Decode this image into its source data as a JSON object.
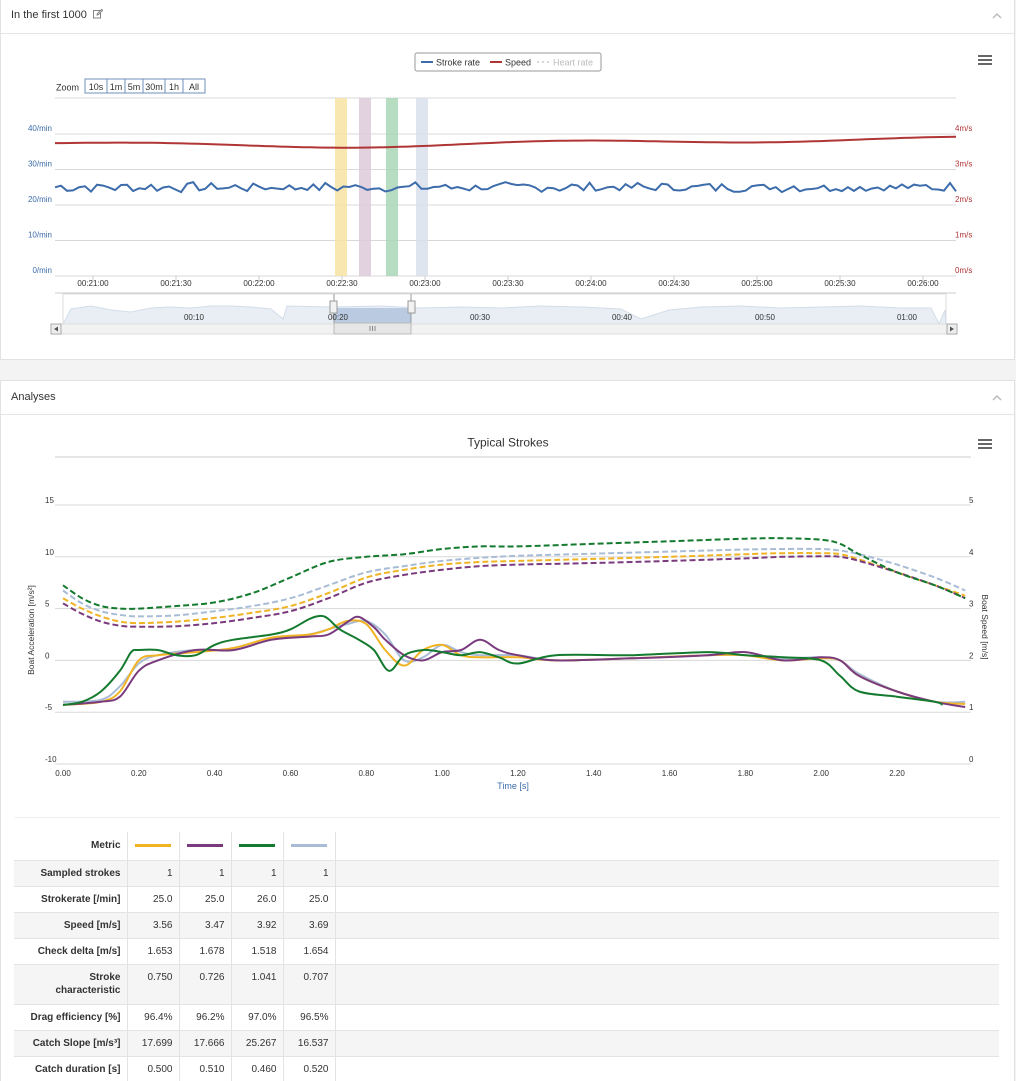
{
  "panel1": {
    "title": "In the first 1000"
  },
  "timeline_chart": {
    "legend": [
      {
        "label": "Stroke rate",
        "color": "#3d6cab",
        "dashed": false,
        "muted": false
      },
      {
        "label": "Speed",
        "color": "#b03535",
        "dashed": false,
        "muted": false
      },
      {
        "label": "Heart rate",
        "color": "#c9c9c9",
        "dashed": true,
        "muted": true
      }
    ],
    "zoom_label": "Zoom",
    "zoom_buttons": [
      "10s",
      "1m",
      "5m",
      "30m",
      "1h",
      "All"
    ],
    "left_axis_ticks": [
      "40/min",
      "30/min",
      "20/min",
      "10/min",
      "0/min"
    ],
    "right_axis_ticks": [
      "4m/s",
      "3m/s",
      "2m/s",
      "1m/s",
      "0m/s"
    ],
    "x_ticks": [
      "00:21:00",
      "00:21:30",
      "00:22:00",
      "00:22:30",
      "00:23:00",
      "00:23:30",
      "00:24:00",
      "00:24:30",
      "00:25:00",
      "00:25:30",
      "00:26:00"
    ],
    "navigator_ticks": [
      "00:10",
      "00:20",
      "00:30",
      "00:40",
      "00:50",
      "01:00"
    ],
    "highlight_bands": [
      {
        "color": "#f7e3a3"
      },
      {
        "color": "#ddc9d9"
      },
      {
        "color": "#a9d6b6"
      },
      {
        "color": "#d8e1ec"
      }
    ],
    "stroke_rate_approx": 25,
    "speed_approx": 3.8
  },
  "panel2": {
    "title": "Analyses"
  },
  "typical_strokes_chart": {
    "title": "Typical Strokes",
    "left_ticks": [
      "15",
      "10",
      "5",
      "0",
      "-5",
      "-10"
    ],
    "right_ticks": [
      "5",
      "4",
      "3",
      "2",
      "1",
      "0"
    ],
    "x_ticks": [
      "0.00",
      "0.20",
      "0.40",
      "0.60",
      "0.80",
      "1.00",
      "1.20",
      "1.40",
      "1.60",
      "1.80",
      "2.00",
      "2.20"
    ],
    "xlabel": "Time [s]",
    "ylabel_left": "Boat Acceleration [m/s²]",
    "ylabel_right": "Boat Speed [m/s]"
  },
  "chart_data": {
    "type": "line",
    "title": "Typical Strokes",
    "xlabel": "Time [s]",
    "ylabel": "Boat Acceleration [m/s²]",
    "ylabel_right": "Boat Speed [m/s]",
    "xlim": [
      0,
      2.4
    ],
    "ylim": [
      -10,
      15
    ],
    "ylim_right": [
      0,
      5
    ],
    "series": [
      {
        "color": "#f0b323",
        "axis": "left",
        "x": [
          0,
          0.1,
          0.15,
          0.2,
          0.25,
          0.35,
          0.45,
          0.55,
          0.65,
          0.7,
          0.75,
          0.8,
          0.85,
          0.9,
          0.95,
          1.0,
          1.05,
          1.1,
          1.2,
          1.3,
          1.5,
          1.7,
          1.8,
          1.9,
          2.0,
          2.05,
          2.1,
          2.2,
          2.3,
          2.38
        ],
        "y": [
          -4.3,
          -4.0,
          -3.0,
          0.0,
          0.5,
          0.8,
          1.2,
          2.2,
          2.5,
          3.0,
          3.8,
          3.5,
          1.0,
          -0.5,
          1.0,
          1.5,
          0.5,
          0.3,
          0.3,
          0.0,
          0.2,
          0.5,
          0.5,
          0.0,
          0.2,
          0.0,
          -1.5,
          -3.0,
          -4.0,
          -4.2
        ]
      },
      {
        "color": "#7a3b7e",
        "axis": "left",
        "x": [
          0,
          0.1,
          0.15,
          0.2,
          0.25,
          0.35,
          0.45,
          0.55,
          0.65,
          0.7,
          0.75,
          0.78,
          0.82,
          0.85,
          0.9,
          0.95,
          1.0,
          1.05,
          1.1,
          1.15,
          1.2,
          1.3,
          1.5,
          1.7,
          1.8,
          1.9,
          2.0,
          2.05,
          2.1,
          2.2,
          2.3,
          2.38
        ],
        "y": [
          -4.3,
          -4.0,
          -3.5,
          -1.0,
          0.0,
          1.0,
          1.0,
          2.0,
          2.3,
          2.5,
          3.7,
          4.2,
          3.2,
          2.0,
          0.5,
          0.0,
          0.8,
          1.0,
          2.0,
          1.0,
          0.5,
          0.0,
          0.2,
          0.5,
          0.8,
          0.0,
          0.3,
          0.0,
          -1.5,
          -3.0,
          -4.0,
          -4.5
        ]
      },
      {
        "color": "#137a2e",
        "axis": "left",
        "x": [
          0,
          0.05,
          0.1,
          0.15,
          0.18,
          0.2,
          0.25,
          0.3,
          0.35,
          0.4,
          0.45,
          0.55,
          0.6,
          0.65,
          0.68,
          0.7,
          0.73,
          0.78,
          0.82,
          0.86,
          0.9,
          0.95,
          1.0,
          1.05,
          1.1,
          1.15,
          1.2,
          1.3,
          1.5,
          1.7,
          1.8,
          1.9,
          2.0,
          2.05,
          2.1,
          2.2,
          2.3,
          2.32
        ],
        "y": [
          -4.3,
          -4.0,
          -3.0,
          -1.0,
          0.8,
          1.0,
          1.0,
          0.5,
          0.5,
          1.5,
          2.0,
          2.5,
          3.0,
          4.0,
          4.3,
          4.0,
          3.0,
          2.0,
          1.0,
          -1.0,
          0.5,
          1.0,
          0.8,
          0.5,
          0.8,
          0.3,
          -0.3,
          0.5,
          0.5,
          0.8,
          0.5,
          0.3,
          0.0,
          -1.5,
          -3.0,
          -3.5,
          -4.0,
          -4.3
        ]
      },
      {
        "color": "#a9bcd6",
        "axis": "left",
        "x": [
          0,
          0.1,
          0.15,
          0.2,
          0.25,
          0.35,
          0.45,
          0.55,
          0.65,
          0.7,
          0.75,
          0.8,
          0.85,
          0.9,
          0.95,
          1.0,
          1.05,
          1.1,
          1.2,
          1.3,
          1.5,
          1.7,
          1.8,
          1.9,
          2.0,
          2.05,
          2.1,
          2.2,
          2.3,
          2.38
        ],
        "y": [
          -4.0,
          -3.8,
          -2.5,
          -0.3,
          0.5,
          1.0,
          1.0,
          2.0,
          2.5,
          3.0,
          3.5,
          3.8,
          2.5,
          0.0,
          0.3,
          1.5,
          0.8,
          0.5,
          0.5,
          0.0,
          0.2,
          0.5,
          0.5,
          0.2,
          0.3,
          0.0,
          -1.3,
          -3.0,
          -4.0,
          -4.0
        ]
      },
      {
        "color": "#f0b323",
        "axis": "right",
        "dashed": true,
        "x": [
          0,
          0.05,
          0.1,
          0.15,
          0.2,
          0.3,
          0.4,
          0.5,
          0.6,
          0.7,
          0.8,
          0.9,
          1.0,
          1.1,
          1.2,
          1.4,
          1.6,
          1.8,
          1.9,
          2.0,
          2.05,
          2.1,
          2.2,
          2.3,
          2.38
        ],
        "y": [
          3.2,
          3.0,
          2.85,
          2.75,
          2.72,
          2.75,
          2.82,
          2.92,
          3.05,
          3.3,
          3.6,
          3.75,
          3.85,
          3.9,
          3.92,
          3.96,
          4.0,
          4.05,
          4.07,
          4.07,
          4.05,
          3.95,
          3.7,
          3.45,
          3.25
        ]
      },
      {
        "color": "#7a3b7e",
        "axis": "right",
        "dashed": true,
        "x": [
          0,
          0.05,
          0.1,
          0.15,
          0.2,
          0.3,
          0.4,
          0.5,
          0.6,
          0.7,
          0.8,
          0.9,
          1.0,
          1.1,
          1.2,
          1.4,
          1.6,
          1.8,
          1.9,
          2.0,
          2.05,
          2.1,
          2.2,
          2.3,
          2.38
        ],
        "y": [
          3.1,
          2.9,
          2.75,
          2.67,
          2.65,
          2.66,
          2.72,
          2.82,
          2.95,
          3.2,
          3.5,
          3.65,
          3.75,
          3.82,
          3.85,
          3.88,
          3.92,
          3.97,
          4.0,
          4.01,
          4.0,
          3.92,
          3.7,
          3.45,
          3.2
        ]
      },
      {
        "color": "#137a2e",
        "axis": "right",
        "dashed": true,
        "x": [
          0,
          0.05,
          0.1,
          0.15,
          0.2,
          0.3,
          0.4,
          0.5,
          0.6,
          0.7,
          0.8,
          0.9,
          1.0,
          1.1,
          1.2,
          1.4,
          1.6,
          1.8,
          1.9,
          2.0,
          2.05,
          2.1,
          2.2,
          2.3,
          2.38
        ],
        "y": [
          3.45,
          3.2,
          3.05,
          3.0,
          3.0,
          3.05,
          3.12,
          3.3,
          3.6,
          3.9,
          4.0,
          4.05,
          4.15,
          4.2,
          4.2,
          4.25,
          4.3,
          4.35,
          4.36,
          4.33,
          4.25,
          4.05,
          3.7,
          3.45,
          3.2
        ]
      },
      {
        "color": "#a9bcd6",
        "axis": "right",
        "dashed": true,
        "x": [
          0,
          0.05,
          0.1,
          0.15,
          0.2,
          0.3,
          0.4,
          0.5,
          0.6,
          0.7,
          0.8,
          0.9,
          1.0,
          1.1,
          1.2,
          1.4,
          1.6,
          1.8,
          1.9,
          2.0,
          2.05,
          2.1,
          2.2,
          2.3,
          2.38
        ],
        "y": [
          3.35,
          3.1,
          2.95,
          2.88,
          2.85,
          2.87,
          2.95,
          3.05,
          3.2,
          3.45,
          3.7,
          3.82,
          3.92,
          3.98,
          4.02,
          4.06,
          4.1,
          4.14,
          4.15,
          4.15,
          4.12,
          4.05,
          3.85,
          3.6,
          3.35
        ]
      }
    ]
  },
  "metrics_table": {
    "header_label": "Metric",
    "series_colors": [
      "#f0b323",
      "#7a3b7e",
      "#137a2e",
      "#a9bcd6"
    ],
    "rows": [
      {
        "label": "Sampled strokes",
        "values": [
          "1",
          "1",
          "1",
          "1"
        ],
        "tall": false
      },
      {
        "label": "Strokerate [/min]",
        "values": [
          "25.0",
          "25.0",
          "26.0",
          "25.0"
        ],
        "tall": false
      },
      {
        "label": "Speed [m/s]",
        "values": [
          "3.56",
          "3.47",
          "3.92",
          "3.69"
        ],
        "tall": false
      },
      {
        "label": "Check delta [m/s]",
        "values": [
          "1.653",
          "1.678",
          "1.518",
          "1.654"
        ],
        "tall": false
      },
      {
        "label": "Stroke characteristic",
        "values": [
          "0.750",
          "0.726",
          "1.041",
          "0.707"
        ],
        "tall": true
      },
      {
        "label": "Drag efficiency [%]",
        "values": [
          "96.4%",
          "96.2%",
          "97.0%",
          "96.5%"
        ],
        "tall": false
      },
      {
        "label": "Catch Slope [m/s³]",
        "values": [
          "17.699",
          "17.666",
          "25.267",
          "16.537"
        ],
        "tall": false
      },
      {
        "label": "Catch duration [s]",
        "values": [
          "0.500",
          "0.510",
          "0.460",
          "0.520"
        ],
        "tall": false
      }
    ]
  }
}
